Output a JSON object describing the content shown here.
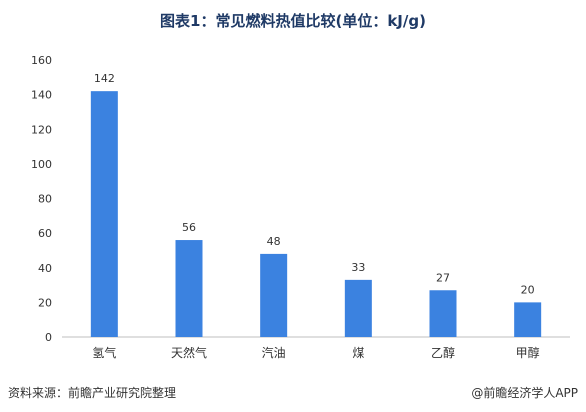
{
  "chart_data": {
    "type": "bar",
    "title": "图表1：常见燃料热值比较(单位：kJ/g)",
    "categories": [
      "氢气",
      "天然气",
      "汽油",
      "煤",
      "乙醇",
      "甲醇"
    ],
    "values": [
      142,
      56,
      48,
      33,
      27,
      20
    ],
    "data_labels": [
      "142",
      "56",
      "48",
      "33",
      "27",
      "20"
    ],
    "y_ticks": [
      "0",
      "20",
      "40",
      "60",
      "80",
      "100",
      "120",
      "140",
      "160"
    ],
    "ylim": [
      0,
      160
    ],
    "xlabel": "",
    "ylabel": "",
    "grid": false,
    "bar_color": "#3b82e0"
  },
  "footer": {
    "source": "资料来源：前瞻产业研究院整理",
    "credit": "@前瞻经济学人APP"
  }
}
